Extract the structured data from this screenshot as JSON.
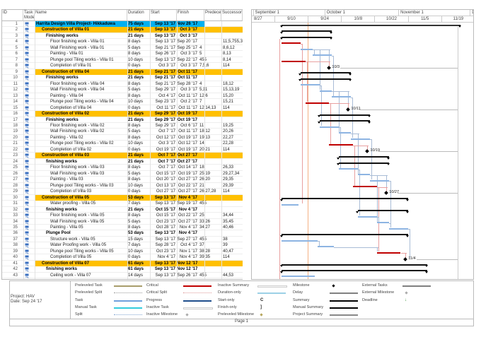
{
  "table": {
    "headers": {
      "id": "ID",
      "mode": "Task\nMode",
      "name": "Name",
      "duration": "Duration",
      "start": "Start",
      "finish": "Finish",
      "pred": "Predecessors",
      "succ": "Successors"
    },
    "rows": [
      {
        "id": "1",
        "name": "Harrita Design Villa Project- Hikkaduwa",
        "duration": "75 days",
        "start": "Sep 13 '17",
        "finish": "Nov 26 '17",
        "pred": "",
        "succ": "",
        "level": 1,
        "type": "project"
      },
      {
        "id": "2",
        "name": "Construction of Villa 01",
        "duration": "21 days",
        "start": "Sep 13 '17",
        "finish": "Oct 3 '17",
        "pred": "",
        "succ": "",
        "level": 2,
        "type": "summary",
        "hl": true
      },
      {
        "id": "3",
        "name": "Finishing works",
        "duration": "21 days",
        "start": "Sep 13 '17",
        "finish": "Oct 3 '17",
        "pred": "",
        "succ": "",
        "level": 3,
        "type": "summary"
      },
      {
        "id": "4",
        "name": "Floor finishing work - Villa 01",
        "duration": "8 days",
        "start": "Sep 13 '17",
        "finish": "Sep 20 '17",
        "pred": "",
        "succ": "11,5,755,31",
        "level": 4,
        "type": "critical"
      },
      {
        "id": "5",
        "name": "Wall Finishing work - Villa 01",
        "duration": "5 days",
        "start": "Sep 21 '17",
        "finish": "Sep 25 '17",
        "pred": "4",
        "succ": "8,6,12",
        "level": 4,
        "type": "task"
      },
      {
        "id": "6",
        "name": "Painting - Villa 01",
        "duration": "8 days",
        "start": "Sep 26 '17",
        "finish": "Oct 3 '17",
        "pred": "5",
        "succ": "8,13",
        "level": 4,
        "type": "task"
      },
      {
        "id": "7",
        "name": "Plunge pool Tiling works - Villa 01",
        "duration": "10 days",
        "start": "Sep 13 '17",
        "finish": "Sep 22 '17",
        "pred": "455",
        "succ": "8,14",
        "level": 4,
        "type": "critical"
      },
      {
        "id": "8",
        "name": "Completion of Villa 01",
        "duration": "0 days",
        "start": "Oct 3 '17",
        "finish": "Oct 3 '17",
        "pred": "7,5,6",
        "succ": "114",
        "level": 4,
        "type": "milestone",
        "label": "10/3"
      },
      {
        "id": "9",
        "name": "Construction of Villa 04",
        "duration": "21 days",
        "start": "Sep 21 '17",
        "finish": "Oct 11 '17",
        "pred": "",
        "succ": "",
        "level": 2,
        "type": "summary",
        "hl": true
      },
      {
        "id": "10",
        "name": "Finishing works",
        "duration": "21 days",
        "start": "Sep 21 '17",
        "finish": "Oct 11 '17",
        "pred": "",
        "succ": "",
        "level": 3,
        "type": "summary"
      },
      {
        "id": "11",
        "name": "Floor finishing work - Villa 04",
        "duration": "8 days",
        "start": "Sep 21 '17",
        "finish": "Sep 28 '17",
        "pred": "4",
        "succ": "18,12",
        "level": 4,
        "type": "task"
      },
      {
        "id": "12",
        "name": "Wall Finishing work - Villa 04",
        "duration": "5 days",
        "start": "Sep 29 '17",
        "finish": "Oct 3 '17",
        "pred": "5,11",
        "succ": "15,13,19",
        "level": 4,
        "type": "task"
      },
      {
        "id": "13",
        "name": "Painting - Villa 04",
        "duration": "8 days",
        "start": "Oct 4 '17",
        "finish": "Oct 11 '17",
        "pred": "12,6",
        "succ": "15,20",
        "level": 4,
        "type": "task"
      },
      {
        "id": "14",
        "name": "Plunge pool Tiling works - Villa 04",
        "duration": "10 days",
        "start": "Sep 23 '17",
        "finish": "Oct 2 '17",
        "pred": "7",
        "succ": "15,21",
        "level": 4,
        "type": "critical"
      },
      {
        "id": "15",
        "name": "Completion of Villa 04",
        "duration": "0 days",
        "start": "Oct 11 '17",
        "finish": "Oct 11 '17",
        "pred": "12,14,13",
        "succ": "114",
        "level": 4,
        "type": "milestone",
        "label": "10/11"
      },
      {
        "id": "16",
        "name": "Construction of Villa 02",
        "duration": "21 days",
        "start": "Sep 29 '17",
        "finish": "Oct 19 '17",
        "pred": "",
        "succ": "",
        "level": 2,
        "type": "summary",
        "hl": true
      },
      {
        "id": "17",
        "name": "Finishing works",
        "duration": "21 days",
        "start": "Sep 29 '17",
        "finish": "Oct 19 '17",
        "pred": "",
        "succ": "",
        "level": 3,
        "type": "summary"
      },
      {
        "id": "18",
        "name": "Floor finishing work - Villa 02",
        "duration": "8 days",
        "start": "Sep 29 '17",
        "finish": "Oct 6 '17",
        "pred": "11",
        "succ": "19,25",
        "level": 4,
        "type": "task"
      },
      {
        "id": "19",
        "name": "Wall Finishing work - Villa 02",
        "duration": "5 days",
        "start": "Oct 7 '17",
        "finish": "Oct 11 '17",
        "pred": "18,12",
        "succ": "20,26",
        "level": 4,
        "type": "task"
      },
      {
        "id": "20",
        "name": "Painting - Villa 02",
        "duration": "8 days",
        "start": "Oct 12 '17",
        "finish": "Oct 19 '17",
        "pred": "19,13",
        "succ": "22,27",
        "level": 4,
        "type": "task"
      },
      {
        "id": "21",
        "name": "Plunge pool Tiling works - Villa 02",
        "duration": "10 days",
        "start": "Oct 3 '17",
        "finish": "Oct 12 '17",
        "pred": "14",
        "succ": "22,28",
        "level": 4,
        "type": "critical"
      },
      {
        "id": "22",
        "name": "Completion of Villa 02",
        "duration": "0 days",
        "start": "Oct 19 '17",
        "finish": "Oct 19 '17",
        "pred": "20,21",
        "succ": "114",
        "level": 4,
        "type": "milestone",
        "label": "10/19"
      },
      {
        "id": "23",
        "name": "Construction of Villa 03",
        "duration": "21 days",
        "start": "Oct 7 '17",
        "finish": "Oct 27 '17",
        "pred": "",
        "succ": "",
        "level": 2,
        "type": "summary",
        "hl": true
      },
      {
        "id": "24",
        "name": "finishing works",
        "duration": "21 days",
        "start": "Oct 7 '17",
        "finish": "Oct 27 '17",
        "pred": "",
        "succ": "",
        "level": 3,
        "type": "summary"
      },
      {
        "id": "25",
        "name": "Floor finishing work - Villa 03",
        "duration": "8 days",
        "start": "Oct 7 '17",
        "finish": "Oct 14 '17",
        "pred": "18",
        "succ": "26,33",
        "level": 4,
        "type": "task"
      },
      {
        "id": "26",
        "name": "Wall Finishing work - Villa 03",
        "duration": "5 days",
        "start": "Oct 15 '17",
        "finish": "Oct 19 '17",
        "pred": "25,19",
        "succ": "29,27,34",
        "level": 4,
        "type": "task"
      },
      {
        "id": "27",
        "name": "Painting - Villa 03",
        "duration": "8 days",
        "start": "Oct 20 '17",
        "finish": "Oct 27 '17",
        "pred": "26,20",
        "succ": "29,35",
        "level": 4,
        "type": "task"
      },
      {
        "id": "28",
        "name": "Plunge pool Tiling works - Villa 03",
        "duration": "10 days",
        "start": "Oct 13 '17",
        "finish": "Oct 22 '17",
        "pred": "21",
        "succ": "29,39",
        "level": 4,
        "type": "critical"
      },
      {
        "id": "29",
        "name": "Completion of Villa 03",
        "duration": "0 days",
        "start": "Oct 27 '17",
        "finish": "Oct 27 '17",
        "pred": "26,27,28",
        "succ": "114",
        "level": 4,
        "type": "milestone",
        "label": "10/27"
      },
      {
        "id": "30",
        "name": "Construction of Villa 05",
        "duration": "53 days",
        "start": "Sep 13 '17",
        "finish": "Nov 4 '17",
        "pred": "",
        "succ": "",
        "level": 2,
        "type": "summary",
        "hl": true
      },
      {
        "id": "31",
        "name": "Water proofing - Villa 05",
        "duration": "7 days",
        "start": "Sep 13 '17",
        "finish": "Sep 19 '17",
        "pred": "455",
        "succ": "",
        "level": 4,
        "type": "task"
      },
      {
        "id": "32",
        "name": "finishing works",
        "duration": "21 days",
        "start": "Oct 15 '17",
        "finish": "Nov 4 '17",
        "pred": "",
        "succ": "",
        "level": 3,
        "type": "summary"
      },
      {
        "id": "33",
        "name": "Floor finishing work - Villa 05",
        "duration": "8 days",
        "start": "Oct 15 '17",
        "finish": "Oct 22 '17",
        "pred": "25",
        "succ": "34,44",
        "level": 4,
        "type": "task"
      },
      {
        "id": "34",
        "name": "Wall Finishing work - Villa 05",
        "duration": "5 days",
        "start": "Oct 23 '17",
        "finish": "Oct 27 '17",
        "pred": "33,26",
        "succ": "35,45",
        "level": 4,
        "type": "task"
      },
      {
        "id": "35",
        "name": "Painting - Villa 05",
        "duration": "8 days",
        "start": "Oct 28 '17",
        "finish": "Nov 4 '17",
        "pred": "34,27",
        "succ": "40,46",
        "level": 4,
        "type": "task"
      },
      {
        "id": "36",
        "name": "Plunge Pool",
        "duration": "53 days",
        "start": "Sep 13 '17",
        "finish": "Nov 4 '17",
        "pred": "",
        "succ": "",
        "level": 3,
        "type": "summary"
      },
      {
        "id": "37",
        "name": "Structure work - Villa 05",
        "duration": "15 days",
        "start": "Sep 13 '17",
        "finish": "Sep 27 '17",
        "pred": "455",
        "succ": "38",
        "level": 4,
        "type": "task"
      },
      {
        "id": "38",
        "name": "Water Proofing work - Villa 05",
        "duration": "7 days",
        "start": "Sep 28 '17",
        "finish": "Oct 4 '17",
        "pred": "37",
        "succ": "39",
        "level": 4,
        "type": "task"
      },
      {
        "id": "39",
        "name": "Plunge pool Tiling works - Villa 05",
        "duration": "10 days",
        "start": "Oct 23 '17",
        "finish": "Nov 1 '17",
        "pred": "38,28",
        "succ": "40,47",
        "level": 4,
        "type": "critical"
      },
      {
        "id": "40",
        "name": "Completion of Villa 05",
        "duration": "0 days",
        "start": "Nov 4 '17",
        "finish": "Nov 4 '17",
        "pred": "39,35",
        "succ": "114",
        "level": 4,
        "type": "milestone",
        "label": "11/4"
      },
      {
        "id": "41",
        "name": "Construction of Villa 07",
        "duration": "61 days",
        "start": "Sep 13 '17",
        "finish": "Nov 12 '17",
        "pred": "",
        "succ": "",
        "level": 2,
        "type": "summary",
        "hl": true
      },
      {
        "id": "42",
        "name": "finishing works",
        "duration": "61 days",
        "start": "Sep 13 '17",
        "finish": "Nov 12 '17",
        "pred": "",
        "succ": "",
        "level": 3,
        "type": "summary"
      },
      {
        "id": "43",
        "name": "Ceiling work - Villa 07",
        "duration": "14 days",
        "start": "Sep 13 '17",
        "finish": "Sep 26 '17",
        "pred": "455",
        "succ": "44,53",
        "level": 4,
        "type": "task"
      }
    ]
  },
  "timescale": {
    "months": [
      "September 1",
      "October 1",
      "November 1",
      "De"
    ],
    "weeks": [
      "8/27",
      "9/10",
      "9/24",
      "10/8",
      "10/22",
      "11/5",
      "11/19"
    ]
  },
  "colors": {
    "summary_highlight": "#ffc000",
    "project_highlight": "#00b0f0",
    "task": "#8db4e2",
    "critical": "#c00000",
    "status_line": "#f4b183"
  },
  "legend": {
    "project": "Project: HAV",
    "date": "Date: Sep 24 '17",
    "items": [
      {
        "label": "Preleveled Task",
        "symbol": "olive-line"
      },
      {
        "label": "Preleveled Split",
        "symbol": "dotted-gray"
      },
      {
        "label": "Task",
        "symbol": "blue-line"
      },
      {
        "label": "Manual Task",
        "symbol": "cyan-line"
      },
      {
        "label": "Split",
        "symbol": "dotted-blue"
      },
      {
        "label": "Critical",
        "symbol": "red-line"
      },
      {
        "label": "Critical Split",
        "symbol": "dotted-red"
      },
      {
        "label": "Progress",
        "symbol": "darkblue-line"
      },
      {
        "label": "Inactive Task",
        "symbol": "outline-line"
      },
      {
        "label": "Inactive Milestone",
        "symbol": "gray-diamond"
      },
      {
        "label": "Inactive Summary",
        "symbol": "outline-summary"
      },
      {
        "label": "Duration-only",
        "symbol": "lightblue-line"
      },
      {
        "label": "Start-only",
        "symbol": "start-bracket",
        "glyph": "C"
      },
      {
        "label": "Finish-only",
        "symbol": "finish-bracket",
        "glyph": "]"
      },
      {
        "label": "Preleveled Milestone",
        "symbol": "olive-diamond"
      },
      {
        "label": "Milestone",
        "symbol": "black-diamond"
      },
      {
        "label": "Delay",
        "symbol": "gray-line"
      },
      {
        "label": "Summary",
        "symbol": "black-summary"
      },
      {
        "label": "Manual Summary",
        "symbol": "black-summary"
      },
      {
        "label": "Project Summary",
        "symbol": "gray-summary"
      },
      {
        "label": "External Tasks",
        "symbol": "gray-line"
      },
      {
        "label": "External Milestone",
        "symbol": "gray-diamond"
      },
      {
        "label": "Deadline",
        "symbol": "green-arrow"
      }
    ]
  },
  "footer": {
    "page": "Page 1"
  }
}
